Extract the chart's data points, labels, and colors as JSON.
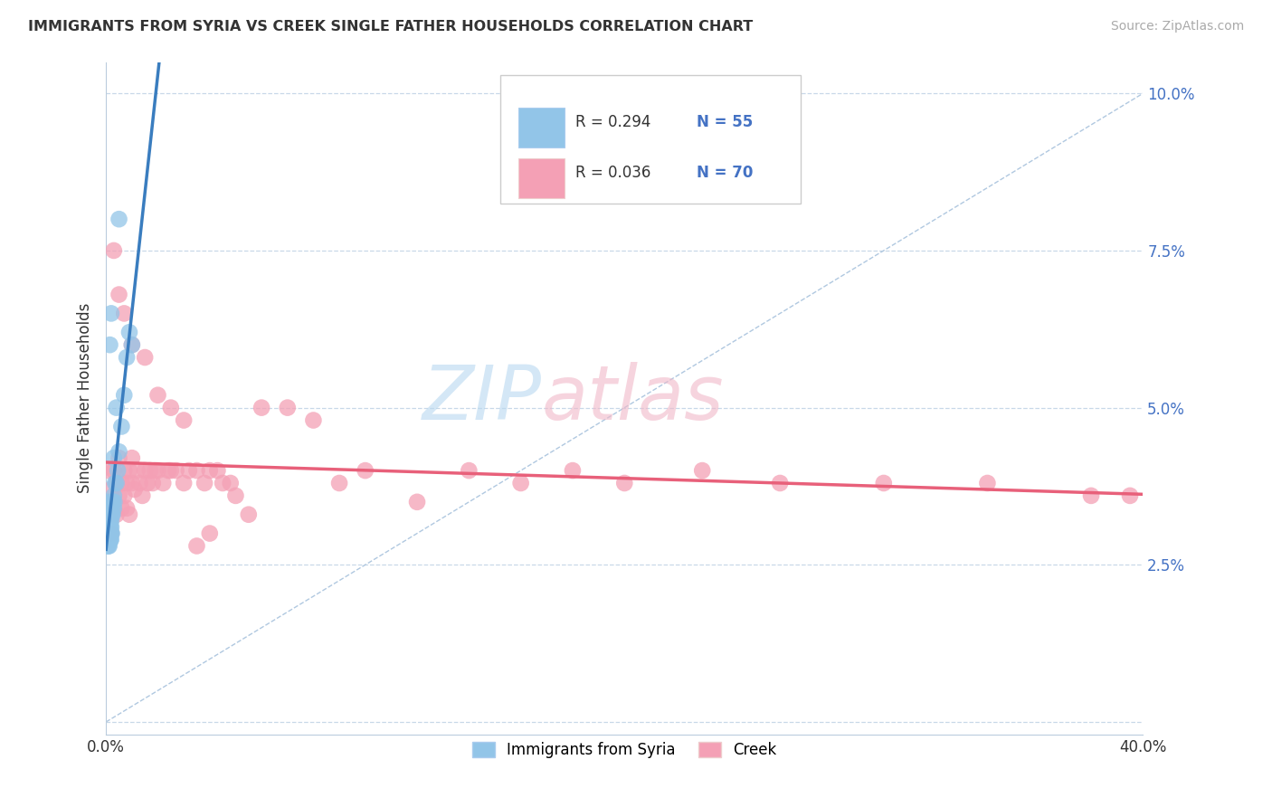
{
  "title": "IMMIGRANTS FROM SYRIA VS CREEK SINGLE FATHER HOUSEHOLDS CORRELATION CHART",
  "source": "Source: ZipAtlas.com",
  "ylabel": "Single Father Households",
  "xlim": [
    0.0,
    0.4
  ],
  "ylim": [
    -0.002,
    0.105
  ],
  "yticks": [
    0.0,
    0.025,
    0.05,
    0.075,
    0.1
  ],
  "ytick_labels": [
    "",
    "2.5%",
    "5.0%",
    "7.5%",
    "10.0%"
  ],
  "legend_r1": "R = 0.294",
  "legend_n1": "N = 55",
  "legend_r2": "R = 0.036",
  "legend_n2": "N = 70",
  "syria_color": "#92c5e8",
  "creek_color": "#f4a0b5",
  "syria_line_color": "#3a7dbf",
  "creek_line_color": "#e8607a",
  "background_color": "#ffffff",
  "grid_color": "#c8d8e8",
  "syria_scatter_x": [
    0.0003,
    0.0004,
    0.0005,
    0.0005,
    0.0006,
    0.0007,
    0.0007,
    0.0008,
    0.0008,
    0.0009,
    0.0009,
    0.001,
    0.001,
    0.001,
    0.001,
    0.0012,
    0.0012,
    0.0013,
    0.0013,
    0.0014,
    0.0015,
    0.0015,
    0.0016,
    0.0016,
    0.0017,
    0.0017,
    0.0018,
    0.0018,
    0.0019,
    0.002,
    0.002,
    0.002,
    0.0022,
    0.0022,
    0.0023,
    0.0024,
    0.0025,
    0.0026,
    0.003,
    0.003,
    0.0032,
    0.0035,
    0.004,
    0.0045,
    0.005,
    0.006,
    0.007,
    0.008,
    0.009,
    0.01,
    0.0015,
    0.002,
    0.003,
    0.004,
    0.005
  ],
  "syria_scatter_y": [
    0.03,
    0.031,
    0.029,
    0.032,
    0.028,
    0.031,
    0.033,
    0.029,
    0.03,
    0.031,
    0.03,
    0.028,
    0.031,
    0.033,
    0.035,
    0.028,
    0.03,
    0.031,
    0.029,
    0.032,
    0.029,
    0.031,
    0.03,
    0.032,
    0.029,
    0.031,
    0.03,
    0.033,
    0.029,
    0.03,
    0.032,
    0.031,
    0.03,
    0.034,
    0.033,
    0.035,
    0.033,
    0.035,
    0.034,
    0.036,
    0.035,
    0.038,
    0.038,
    0.04,
    0.043,
    0.047,
    0.052,
    0.058,
    0.062,
    0.06,
    0.06,
    0.065,
    0.042,
    0.05,
    0.08
  ],
  "creek_scatter_x": [
    0.001,
    0.001,
    0.002,
    0.002,
    0.003,
    0.003,
    0.004,
    0.004,
    0.005,
    0.005,
    0.006,
    0.006,
    0.007,
    0.007,
    0.008,
    0.008,
    0.009,
    0.009,
    0.01,
    0.01,
    0.011,
    0.012,
    0.013,
    0.014,
    0.015,
    0.016,
    0.017,
    0.018,
    0.019,
    0.02,
    0.022,
    0.024,
    0.025,
    0.027,
    0.03,
    0.032,
    0.035,
    0.038,
    0.04,
    0.043,
    0.045,
    0.048,
    0.05,
    0.055,
    0.06,
    0.07,
    0.08,
    0.09,
    0.1,
    0.12,
    0.14,
    0.16,
    0.18,
    0.2,
    0.23,
    0.26,
    0.3,
    0.34,
    0.38,
    0.395,
    0.003,
    0.005,
    0.007,
    0.01,
    0.015,
    0.02,
    0.025,
    0.03,
    0.035,
    0.04
  ],
  "creek_scatter_y": [
    0.04,
    0.033,
    0.037,
    0.03,
    0.04,
    0.035,
    0.038,
    0.033,
    0.042,
    0.036,
    0.038,
    0.034,
    0.04,
    0.036,
    0.038,
    0.034,
    0.04,
    0.033,
    0.038,
    0.042,
    0.037,
    0.04,
    0.038,
    0.036,
    0.04,
    0.038,
    0.04,
    0.038,
    0.04,
    0.04,
    0.038,
    0.04,
    0.04,
    0.04,
    0.038,
    0.04,
    0.04,
    0.038,
    0.04,
    0.04,
    0.038,
    0.038,
    0.036,
    0.033,
    0.05,
    0.05,
    0.048,
    0.038,
    0.04,
    0.035,
    0.04,
    0.038,
    0.04,
    0.038,
    0.04,
    0.038,
    0.038,
    0.038,
    0.036,
    0.036,
    0.075,
    0.068,
    0.065,
    0.06,
    0.058,
    0.052,
    0.05,
    0.048,
    0.028,
    0.03
  ],
  "syria_trendline": [
    0.0,
    0.06,
    0.03,
    0.05
  ],
  "creek_trendline_start_y": 0.0358,
  "creek_trendline_end_y": 0.037
}
